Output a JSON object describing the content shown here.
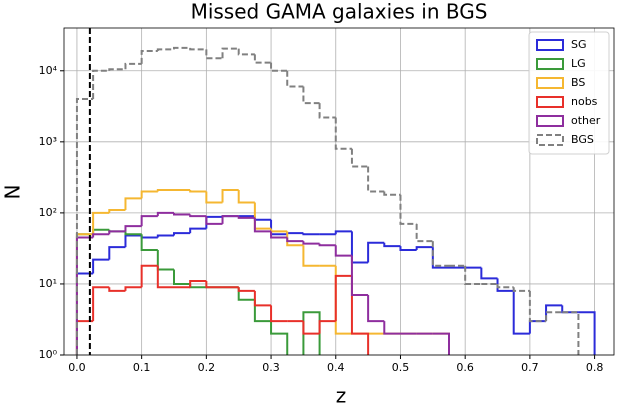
{
  "chart_data": {
    "type": "step-histogram",
    "title": "Missed GAMA galaxies in BGS",
    "x_label": "z",
    "y_label": "N",
    "bins": [
      0,
      0.025,
      0.05,
      0.075,
      0.1,
      0.125,
      0.15,
      0.175,
      0.2,
      0.225,
      0.25,
      0.275,
      0.3,
      0.325,
      0.35,
      0.375,
      0.4,
      0.425,
      0.45,
      0.475,
      0.5,
      0.525,
      0.55,
      0.575,
      0.6,
      0.625,
      0.65,
      0.675,
      0.7,
      0.725,
      0.75,
      0.775,
      0.8
    ],
    "series": [
      {
        "name": "SG",
        "color": "#2b2bd9",
        "values": [
          14,
          22,
          33,
          48,
          45,
          48,
          52,
          60,
          88,
          90,
          90,
          80,
          50,
          52,
          50,
          50,
          55,
          20,
          38,
          34,
          30,
          33,
          17,
          17,
          17,
          12,
          8,
          2,
          3,
          5,
          4,
          4
        ]
      },
      {
        "name": "LG",
        "color": "#3a9a3a",
        "values": [
          50,
          58,
          55,
          50,
          30,
          16,
          10,
          9,
          9,
          9,
          6,
          3,
          2,
          null,
          4,
          null,
          null,
          null,
          null,
          null,
          null,
          null,
          null,
          null,
          null,
          null,
          null,
          null,
          null,
          null,
          null,
          null
        ]
      },
      {
        "name": "BS",
        "color": "#f5b731",
        "values": [
          50,
          100,
          110,
          160,
          200,
          210,
          210,
          200,
          140,
          210,
          140,
          60,
          55,
          35,
          18,
          18,
          2,
          2,
          2,
          2,
          2,
          2,
          2,
          null,
          null,
          null,
          null,
          null,
          null,
          null,
          null,
          null
        ]
      },
      {
        "name": "nobs",
        "color": "#e8302a",
        "values": [
          3,
          9,
          8,
          9,
          18,
          9,
          9,
          11,
          9,
          9,
          8,
          5,
          3,
          3,
          2,
          3,
          13,
          2,
          null,
          null,
          null,
          null,
          null,
          null,
          null,
          null,
          null,
          null,
          null,
          null,
          null,
          null
        ]
      },
      {
        "name": "other",
        "color": "#8e2e9e",
        "values": [
          45,
          50,
          55,
          65,
          90,
          100,
          95,
          90,
          70,
          90,
          85,
          55,
          45,
          40,
          37,
          35,
          25,
          7,
          3,
          2,
          2,
          2,
          2,
          null,
          null,
          null,
          null,
          null,
          null,
          null,
          null,
          null
        ]
      },
      {
        "name": "BGS",
        "color": "#808080",
        "dashed": true,
        "values": [
          4000,
          10000,
          10500,
          12500,
          19000,
          20000,
          21000,
          20000,
          15000,
          20500,
          17000,
          13000,
          10000,
          6000,
          3500,
          2200,
          800,
          450,
          200,
          180,
          70,
          40,
          18,
          18,
          10,
          10,
          9,
          8,
          3,
          4,
          4,
          null
        ]
      }
    ],
    "vline": 0.02,
    "xlim": [
      -0.02,
      0.83
    ],
    "ylim": [
      1,
      40000
    ],
    "log_y": true,
    "grid": true,
    "legend": "upper right",
    "xticks": [
      {
        "value": 0,
        "label": "0.0"
      },
      0.1,
      0.2,
      0.3,
      0.4,
      0.5,
      0.6,
      0.7,
      0.8
    ],
    "yticks": [
      {
        "value": 1,
        "label": "10⁰"
      },
      {
        "value": 10,
        "label": "10¹"
      },
      {
        "value": 100,
        "label": "10²"
      },
      {
        "value": 1000,
        "label": "10³"
      },
      {
        "value": 10000,
        "label": "10⁴"
      }
    ]
  }
}
